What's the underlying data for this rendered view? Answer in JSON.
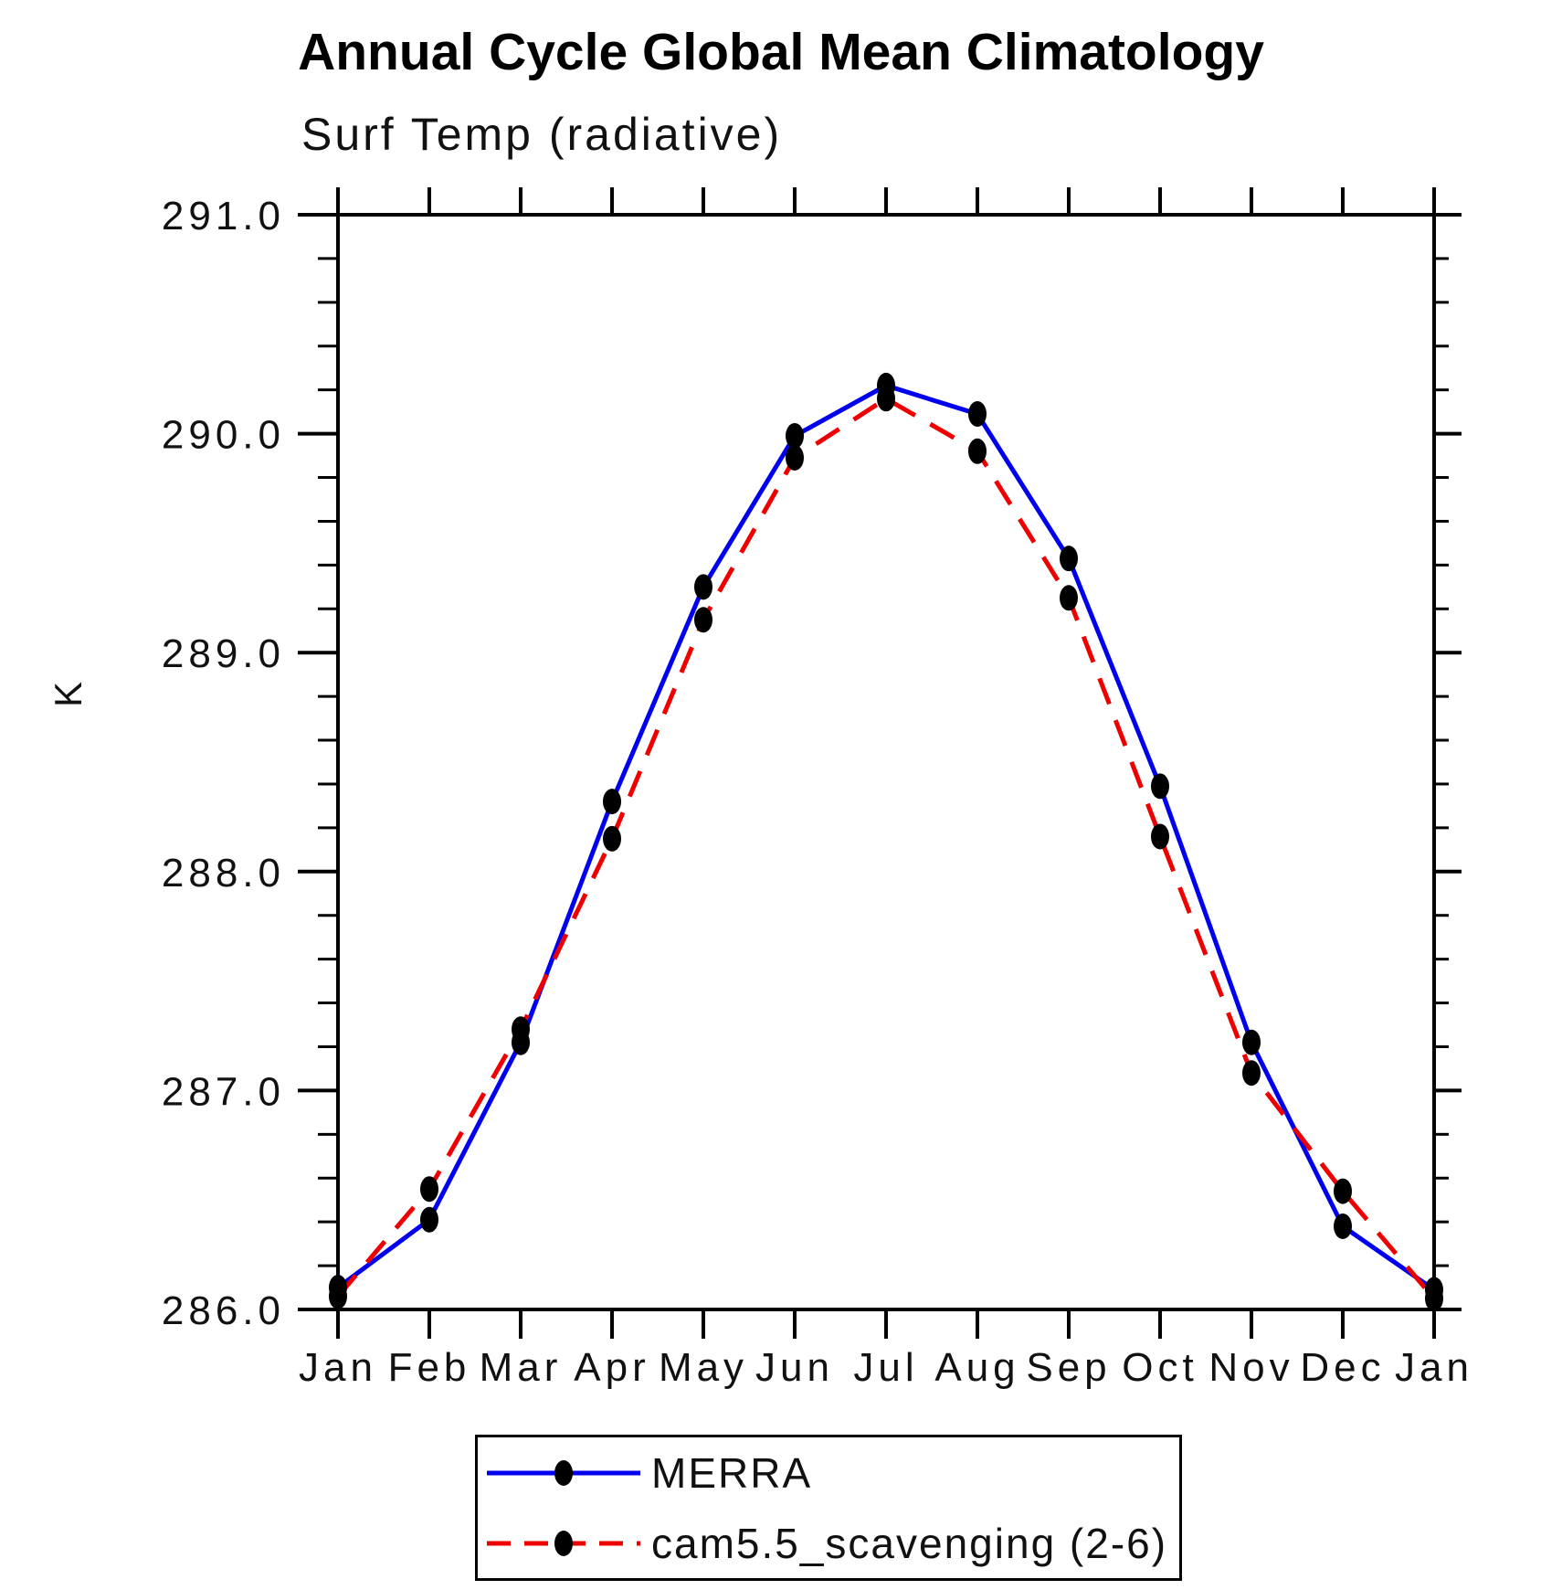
{
  "page": {
    "background": "#ffffff"
  },
  "chart_data": {
    "type": "line",
    "title": "Annual Cycle Global Mean Climatology",
    "subtitle": "Surf Temp (radiative)",
    "ylabel": "K",
    "x_categories": [
      "Jan",
      "Feb",
      "Mar",
      "Apr",
      "May",
      "Jun",
      "Jul",
      "Aug",
      "Sep",
      "Oct",
      "Nov",
      "Dec",
      "Jan"
    ],
    "ylim": [
      286.0,
      291.0
    ],
    "y_major_ticks": [
      286.0,
      287.0,
      288.0,
      289.0,
      290.0,
      291.0
    ],
    "y_tick_labels": [
      "286.0",
      "287.0",
      "288.0",
      "289.0",
      "290.0",
      "291.0"
    ],
    "y_minor_step": 0.2,
    "grid": "off",
    "legend_position": "bottom",
    "marker": {
      "shape": "filled-ellipse",
      "color": "#000000"
    },
    "axis_color": "#000000",
    "series": [
      {
        "name": "MERRA",
        "color": "#0000ee",
        "style": "solid",
        "values": [
          286.1,
          286.41,
          287.22,
          288.32,
          289.3,
          289.99,
          290.22,
          290.09,
          289.43,
          288.39,
          287.22,
          286.38,
          286.09
        ]
      },
      {
        "name": "cam5.5_scavenging (2-6)",
        "color": "#ee0000",
        "style": "dashed",
        "values": [
          286.06,
          286.55,
          287.28,
          288.15,
          289.15,
          289.89,
          290.16,
          289.92,
          289.25,
          288.16,
          287.08,
          286.54,
          286.05
        ]
      }
    ]
  }
}
